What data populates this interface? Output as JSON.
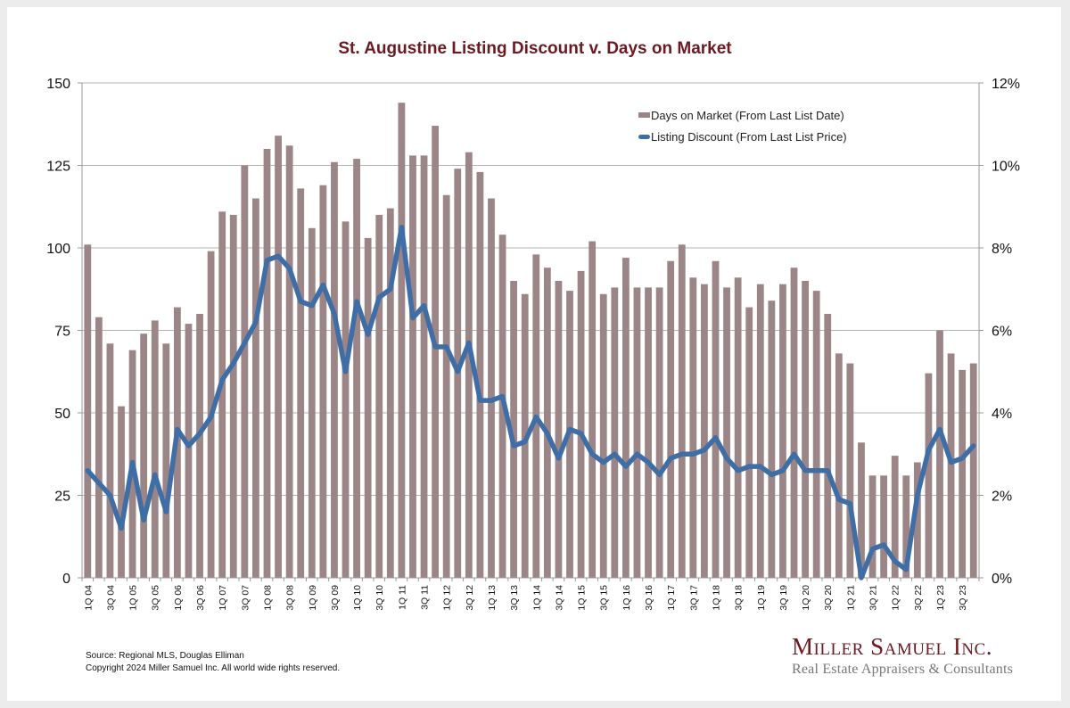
{
  "chart_data": {
    "type": "bar+line",
    "title": "St. Augustine Listing Discount v. Days on Market",
    "categories": [
      "1Q 04",
      "2Q 04",
      "3Q 04",
      "4Q 04",
      "1Q 05",
      "2Q 05",
      "3Q 05",
      "4Q 05",
      "1Q 06",
      "2Q 06",
      "3Q 06",
      "4Q 06",
      "1Q 07",
      "2Q 07",
      "3Q 07",
      "4Q 07",
      "1Q 08",
      "2Q 08",
      "3Q 08",
      "4Q 08",
      "1Q 09",
      "2Q 09",
      "3Q 09",
      "4Q 09",
      "1Q 10",
      "2Q 10",
      "3Q 10",
      "4Q 10",
      "1Q 11",
      "2Q 11",
      "3Q 11",
      "4Q 11",
      "1Q 12",
      "2Q 12",
      "3Q 12",
      "4Q 12",
      "1Q 13",
      "2Q 13",
      "3Q 13",
      "4Q 13",
      "1Q 14",
      "2Q 14",
      "3Q 14",
      "4Q 14",
      "1Q 15",
      "2Q 15",
      "3Q 15",
      "4Q 15",
      "1Q 16",
      "2Q 16",
      "3Q 16",
      "4Q 16",
      "1Q 17",
      "2Q 17",
      "3Q 17",
      "4Q 17",
      "1Q 18",
      "2Q 18",
      "3Q 18",
      "4Q 18",
      "1Q 19",
      "2Q 19",
      "3Q 19",
      "4Q 19",
      "1Q 20",
      "2Q 20",
      "3Q 20",
      "4Q 20",
      "1Q 21",
      "2Q 21",
      "3Q 21",
      "4Q 21",
      "1Q 22",
      "2Q 22",
      "3Q 22",
      "4Q 22",
      "1Q 23",
      "2Q 23",
      "3Q 23",
      "4Q 23"
    ],
    "series": [
      {
        "name": "Days on Market (From Last List Date)",
        "type": "bar",
        "axis": "left",
        "color": "#9b8586",
        "values": [
          101,
          79,
          71,
          52,
          69,
          74,
          78,
          71,
          82,
          77,
          80,
          99,
          111,
          110,
          125,
          115,
          130,
          134,
          131,
          118,
          106,
          119,
          126,
          108,
          127,
          103,
          110,
          112,
          144,
          128,
          128,
          137,
          116,
          124,
          129,
          123,
          115,
          104,
          90,
          86,
          98,
          94,
          90,
          87,
          93,
          102,
          86,
          88,
          97,
          88,
          88,
          88,
          96,
          101,
          91,
          89,
          96,
          88,
          91,
          82,
          89,
          84,
          89,
          94,
          90,
          87,
          80,
          68,
          65,
          41,
          31,
          31,
          37,
          31,
          35,
          62,
          75,
          68,
          63,
          65
        ]
      },
      {
        "name": "Listing Discount (From Last List Price)",
        "type": "line",
        "axis": "right",
        "color": "#3f6ea6",
        "values": [
          2.6,
          2.3,
          2.0,
          1.2,
          2.8,
          1.4,
          2.5,
          1.6,
          3.6,
          3.2,
          3.5,
          3.9,
          4.8,
          5.2,
          5.7,
          6.2,
          7.7,
          7.8,
          7.5,
          6.7,
          6.6,
          7.1,
          6.4,
          5.0,
          6.7,
          5.9,
          6.8,
          7.0,
          8.5,
          6.3,
          6.6,
          5.6,
          5.6,
          5.0,
          5.7,
          4.3,
          4.3,
          4.4,
          3.2,
          3.3,
          3.9,
          3.5,
          2.9,
          3.6,
          3.5,
          3.0,
          2.8,
          3.0,
          2.7,
          3.0,
          2.8,
          2.5,
          2.9,
          3.0,
          3.0,
          3.1,
          3.4,
          2.9,
          2.6,
          2.7,
          2.7,
          2.5,
          2.6,
          3.0,
          2.6,
          2.6,
          2.6,
          1.9,
          1.8,
          0.0,
          0.7,
          0.8,
          0.4,
          0.2,
          2.0,
          3.1,
          3.6,
          2.8,
          2.9,
          3.2
        ]
      }
    ],
    "y_left": {
      "range": [
        0,
        150
      ],
      "ticks": [
        "0",
        "25",
        "50",
        "75",
        "100",
        "125",
        "150"
      ],
      "label": ""
    },
    "y_right": {
      "range": [
        0,
        12
      ],
      "ticks": [
        "0%",
        "2%",
        "4%",
        "6%",
        "8%",
        "10%",
        "12%"
      ],
      "label": ""
    },
    "x_tick_labels_shown_every": 2,
    "grid": true,
    "legend_position": "top-right",
    "legend": [
      "Days on Market (From Last List Date)",
      "Listing Discount (From Last List Price)"
    ]
  },
  "footer": {
    "source": "Source: Regional MLS, Douglas Elliman",
    "copyright": "Copyright 2024 Miller Samuel Inc.  All world wide rights reserved."
  },
  "logo": {
    "name": "Miller Samuel Inc.",
    "tagline": "Real Estate Appraisers & Consultants"
  }
}
